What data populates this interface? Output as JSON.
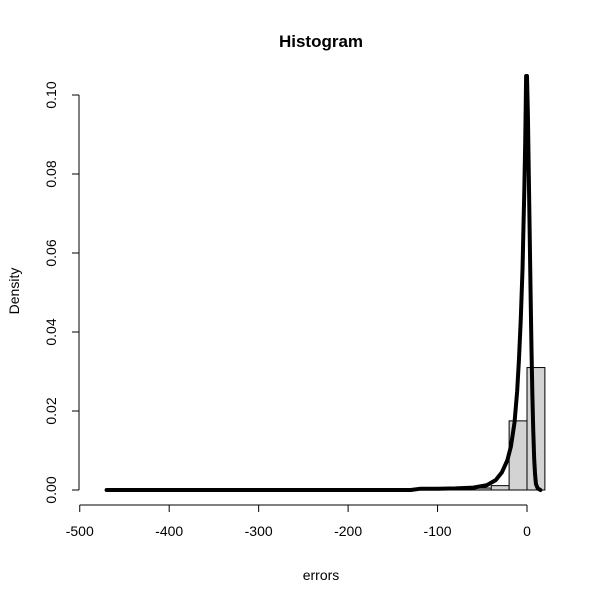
{
  "chart_data": {
    "type": "bar",
    "title": "Histogram",
    "xlabel": "errors",
    "ylabel": "Density",
    "xlim": [
      -500,
      20
    ],
    "ylim": [
      0,
      0.1
    ],
    "x_ticks": [
      -500,
      -400,
      -300,
      -200,
      -100,
      0
    ],
    "x_tick_labels": [
      "-500",
      "-400",
      "-300",
      "-200",
      "-100",
      "0"
    ],
    "y_ticks": [
      0,
      0.02,
      0.04,
      0.06,
      0.08,
      0.1
    ],
    "y_tick_labels": [
      "0.00",
      "0.02",
      "0.04",
      "0.06",
      "0.08",
      "0.10"
    ],
    "bin_width": 20,
    "bins": [
      {
        "from": -480,
        "to": -460,
        "density": 0.0
      },
      {
        "from": -460,
        "to": -440,
        "density": 0.0
      },
      {
        "from": -440,
        "to": -420,
        "density": 0.0
      },
      {
        "from": -420,
        "to": -400,
        "density": 0.0
      },
      {
        "from": -400,
        "to": -380,
        "density": 0.0
      },
      {
        "from": -380,
        "to": -360,
        "density": 0.0
      },
      {
        "from": -360,
        "to": -340,
        "density": 0.0
      },
      {
        "from": -340,
        "to": -320,
        "density": 0.0
      },
      {
        "from": -320,
        "to": -300,
        "density": 0.0
      },
      {
        "from": -300,
        "to": -280,
        "density": 0.0
      },
      {
        "from": -280,
        "to": -260,
        "density": 0.0
      },
      {
        "from": -260,
        "to": -240,
        "density": 0.0
      },
      {
        "from": -240,
        "to": -220,
        "density": 0.0
      },
      {
        "from": -220,
        "to": -200,
        "density": 0.0
      },
      {
        "from": -200,
        "to": -180,
        "density": 0.0
      },
      {
        "from": -180,
        "to": -160,
        "density": 0.0
      },
      {
        "from": -160,
        "to": -140,
        "density": 0.0
      },
      {
        "from": -140,
        "to": -120,
        "density": 0.0
      },
      {
        "from": -120,
        "to": -100,
        "density": 0.0002
      },
      {
        "from": -100,
        "to": -80,
        "density": 0.0002
      },
      {
        "from": -80,
        "to": -60,
        "density": 0.0003
      },
      {
        "from": -60,
        "to": -40,
        "density": 0.0005
      },
      {
        "from": -40,
        "to": -20,
        "density": 0.0011
      },
      {
        "from": -20,
        "to": 0,
        "density": 0.0175
      },
      {
        "from": 0,
        "to": 20,
        "density": 0.031
      }
    ],
    "density_curve": {
      "x": [
        -470,
        -400,
        -300,
        -200,
        -130,
        -120,
        -100,
        -80,
        -60,
        -45,
        -35,
        -28,
        -22,
        -18,
        -14,
        -11,
        -9,
        -7,
        -5,
        -4,
        -3,
        -2,
        -1.5,
        -1,
        0,
        1,
        2,
        3,
        4,
        5,
        6,
        7,
        8,
        9,
        10,
        12,
        15
      ],
      "y": [
        0.0,
        0.0,
        0.0,
        0.0,
        0.0,
        0.0003,
        0.0003,
        0.0004,
        0.0006,
        0.0012,
        0.0025,
        0.0045,
        0.0075,
        0.011,
        0.017,
        0.025,
        0.033,
        0.043,
        0.056,
        0.066,
        0.076,
        0.088,
        0.096,
        0.105,
        0.105,
        0.095,
        0.08,
        0.065,
        0.05,
        0.036,
        0.024,
        0.015,
        0.008,
        0.004,
        0.0015,
        0.0004,
        0.0
      ]
    }
  }
}
